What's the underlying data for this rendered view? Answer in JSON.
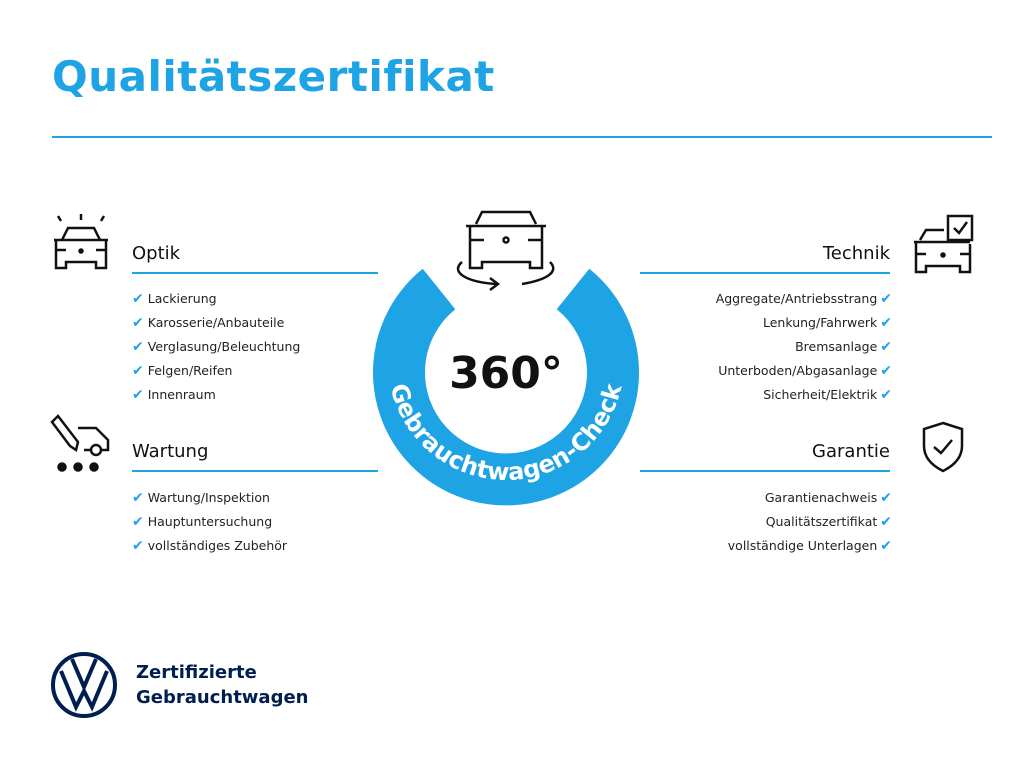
{
  "title": "Qualitätszertifikat",
  "accent_color": "#1ea3e4",
  "center": {
    "degrees": "360°",
    "ring_text": "Gebrauchtwagen-Check",
    "icon": "car-rotate-icon"
  },
  "sections": {
    "optik": {
      "heading": "Optik",
      "icon": "car-shine-icon",
      "items": [
        "Lackierung",
        "Karosserie/Anbauteile",
        "Verglasung/Beleuchtung",
        "Felgen/Reifen",
        "Innenraum"
      ]
    },
    "wartung": {
      "heading": "Wartung",
      "icon": "car-service-icon",
      "items": [
        "Wartung/Inspektion",
        "Hauptuntersuchung",
        "vollständiges Zubehör"
      ]
    },
    "technik": {
      "heading": "Technik",
      "icon": "car-checklist-icon",
      "items": [
        "Aggregate/Antriebsstrang",
        "Lenkung/Fahrwerk",
        "Bremsanlage",
        "Unterboden/Abgasanlage",
        "Sicherheit/Elektrik"
      ]
    },
    "garantie": {
      "heading": "Garantie",
      "icon": "shield-check-icon",
      "items": [
        "Garantienachweis",
        "Qualitätszertifikat",
        "vollständige Unterlagen"
      ]
    }
  },
  "check_glyph": "✔",
  "brand": {
    "line1": "Zertifizierte",
    "line2": "Gebrauchtwagen",
    "logo_text": "VW"
  }
}
